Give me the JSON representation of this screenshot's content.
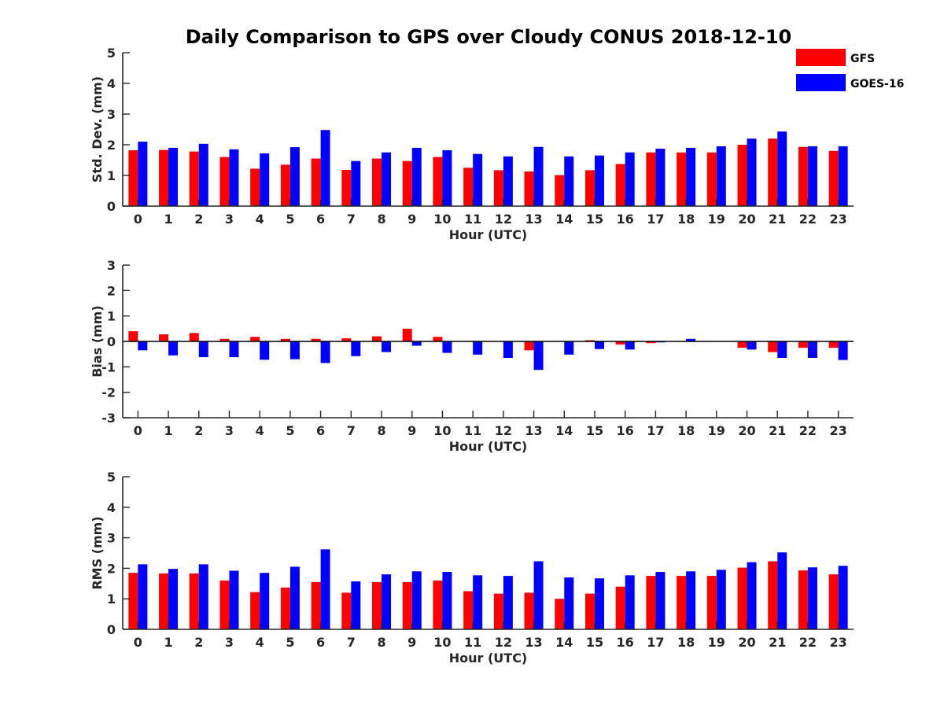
{
  "figure": {
    "title": "Daily Comparison to GPS over Cloudy CONUS 2018-12-10"
  },
  "legend": {
    "placement": "top-right",
    "entries": [
      {
        "label": "GFS",
        "color": "#ff0000"
      },
      {
        "label": "GOES-16",
        "color": "#0000ff"
      }
    ]
  },
  "chart_data": [
    {
      "type": "bar",
      "title": "Daily Comparison to GPS over Cloudy CONUS 2018-12-10",
      "xlabel": "Hour (UTC)",
      "ylabel": "Std. Dev. (mm)",
      "ylim": [
        0,
        5
      ],
      "yticks": [
        0,
        1,
        2,
        3,
        4,
        5
      ],
      "categories": [
        0,
        1,
        2,
        3,
        4,
        5,
        6,
        7,
        8,
        9,
        10,
        11,
        12,
        13,
        14,
        15,
        16,
        17,
        18,
        19,
        20,
        21,
        22,
        23
      ],
      "series": [
        {
          "name": "GFS",
          "color": "#ff0000",
          "values": [
            1.82,
            1.83,
            1.78,
            1.6,
            1.22,
            1.35,
            1.55,
            1.18,
            1.55,
            1.47,
            1.6,
            1.25,
            1.17,
            1.13,
            1.01,
            1.17,
            1.37,
            1.75,
            1.75,
            1.75,
            2.0,
            2.2,
            1.93,
            1.8
          ]
        },
        {
          "name": "GOES-16",
          "color": "#0000ff",
          "values": [
            2.1,
            1.9,
            2.03,
            1.85,
            1.72,
            1.92,
            2.48,
            1.47,
            1.75,
            1.9,
            1.82,
            1.7,
            1.62,
            1.93,
            1.62,
            1.65,
            1.75,
            1.87,
            1.9,
            1.95,
            2.2,
            2.43,
            1.95,
            1.95
          ]
        }
      ]
    },
    {
      "type": "bar",
      "xlabel": "Hour (UTC)",
      "ylabel": "Bias (mm)",
      "ylim": [
        -3,
        3
      ],
      "yticks": [
        -3,
        -2,
        -1,
        0,
        1,
        2,
        3
      ],
      "categories": [
        0,
        1,
        2,
        3,
        4,
        5,
        6,
        7,
        8,
        9,
        10,
        11,
        12,
        13,
        14,
        15,
        16,
        17,
        18,
        19,
        20,
        21,
        22,
        23
      ],
      "series": [
        {
          "name": "GFS",
          "color": "#ff0000",
          "values": [
            0.4,
            0.28,
            0.33,
            0.1,
            0.18,
            0.1,
            0.1,
            0.12,
            0.2,
            0.5,
            0.18,
            0.02,
            0.0,
            -0.35,
            0.0,
            0.05,
            -0.12,
            -0.07,
            0.02,
            0.0,
            -0.25,
            -0.42,
            -0.25,
            -0.25
          ]
        },
        {
          "name": "GOES-16",
          "color": "#0000ff",
          "values": [
            -0.35,
            -0.55,
            -0.62,
            -0.62,
            -0.72,
            -0.7,
            -0.85,
            -0.58,
            -0.42,
            -0.17,
            -0.45,
            -0.52,
            -0.65,
            -1.12,
            -0.52,
            -0.3,
            -0.32,
            -0.04,
            0.1,
            0.0,
            -0.32,
            -0.65,
            -0.65,
            -0.73
          ]
        }
      ]
    },
    {
      "type": "bar",
      "xlabel": "Hour (UTC)",
      "ylabel": "RMS (mm)",
      "ylim": [
        0,
        5
      ],
      "yticks": [
        0,
        1,
        2,
        3,
        4,
        5
      ],
      "categories": [
        0,
        1,
        2,
        3,
        4,
        5,
        6,
        7,
        8,
        9,
        10,
        11,
        12,
        13,
        14,
        15,
        16,
        17,
        18,
        19,
        20,
        21,
        22,
        23
      ],
      "series": [
        {
          "name": "GFS",
          "color": "#ff0000",
          "values": [
            1.85,
            1.83,
            1.83,
            1.6,
            1.22,
            1.37,
            1.55,
            1.2,
            1.55,
            1.55,
            1.6,
            1.25,
            1.17,
            1.2,
            1.0,
            1.17,
            1.4,
            1.75,
            1.75,
            1.75,
            2.02,
            2.23,
            1.93,
            1.8
          ]
        },
        {
          "name": "GOES-16",
          "color": "#0000ff",
          "values": [
            2.13,
            1.98,
            2.13,
            1.92,
            1.85,
            2.05,
            2.62,
            1.57,
            1.8,
            1.9,
            1.88,
            1.77,
            1.75,
            2.23,
            1.7,
            1.67,
            1.77,
            1.88,
            1.9,
            1.95,
            2.2,
            2.52,
            2.03,
            2.08
          ]
        }
      ]
    }
  ]
}
